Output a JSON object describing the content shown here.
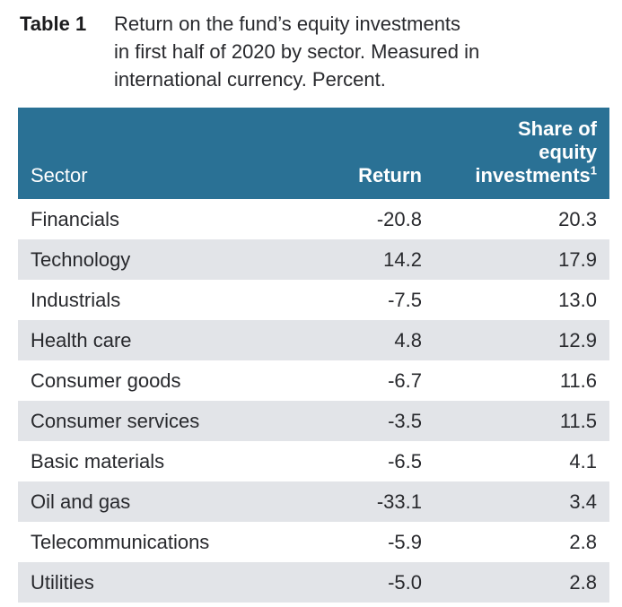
{
  "caption": {
    "label": "Table 1",
    "lines": [
      "Return on the fund’s equity investments",
      "in first half of 2020 by sector. Measured in",
      "international currency. Percent."
    ]
  },
  "table": {
    "header": {
      "sector": "Sector",
      "return": "Return",
      "share_lines": [
        "Share of",
        "equity",
        "investments"
      ],
      "footnote_marker": "1"
    },
    "rows": [
      {
        "sector": "Financials",
        "return": "-20.8",
        "share": "20.3"
      },
      {
        "sector": "Technology",
        "return": "14.2",
        "share": "17.9"
      },
      {
        "sector": "Industrials",
        "return": "-7.5",
        "share": "13.0"
      },
      {
        "sector": "Health care",
        "return": "4.8",
        "share": "12.9"
      },
      {
        "sector": "Consumer goods",
        "return": "-6.7",
        "share": "11.6"
      },
      {
        "sector": "Consumer services",
        "return": "-3.5",
        "share": "11.5"
      },
      {
        "sector": "Basic materials",
        "return": "-6.5",
        "share": "4.1"
      },
      {
        "sector": "Oil and gas",
        "return": "-33.1",
        "share": "3.4"
      },
      {
        "sector": "Telecommunications",
        "return": "-5.9",
        "share": "2.8"
      },
      {
        "sector": "Utilities",
        "return": "-5.0",
        "share": "2.8"
      }
    ]
  },
  "colors": {
    "header_bg": "#2a7195",
    "header_text": "#ffffff",
    "row_alt_bg": "#e2e4e8",
    "body_text": "#28292d"
  },
  "chart_data": {
    "type": "table",
    "title": "Table 1",
    "subtitle": "Return on the fund’s equity investments in first half of 2020 by sector. Measured in international currency. Percent.",
    "columns": [
      "Sector",
      "Return",
      "Share of equity investments¹"
    ],
    "rows": [
      [
        "Financials",
        -20.8,
        20.3
      ],
      [
        "Technology",
        14.2,
        17.9
      ],
      [
        "Industrials",
        -7.5,
        13.0
      ],
      [
        "Health care",
        4.8,
        12.9
      ],
      [
        "Consumer goods",
        -6.7,
        11.6
      ],
      [
        "Consumer services",
        -3.5,
        11.5
      ],
      [
        "Basic materials",
        -6.5,
        4.1
      ],
      [
        "Oil and gas",
        -33.1,
        3.4
      ],
      [
        "Telecommunications",
        -5.9,
        2.8
      ],
      [
        "Utilities",
        -5.0,
        2.8
      ]
    ]
  }
}
